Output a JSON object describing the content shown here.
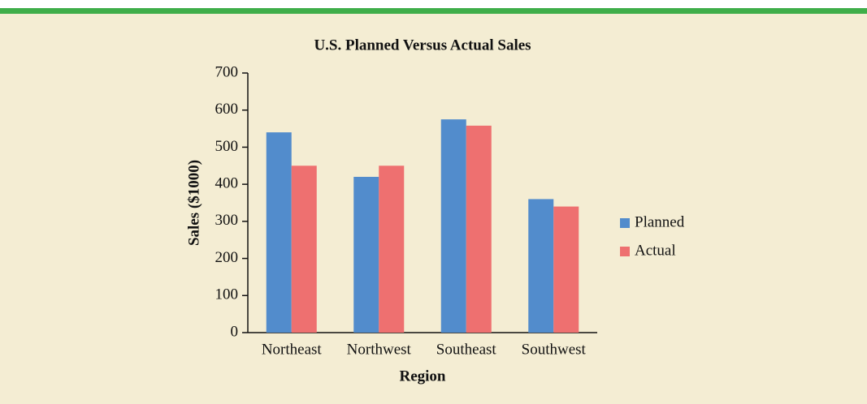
{
  "chart_data": {
    "type": "bar",
    "title": "U.S. Planned Versus Actual Sales",
    "x_label": "Region",
    "y_label": "Sales ($1000)",
    "categories": [
      "Northeast",
      "Northwest",
      "Southeast",
      "Southwest"
    ],
    "series": [
      {
        "name": "Planned",
        "color": "#528ccc",
        "values": [
          540,
          420,
          575,
          360
        ]
      },
      {
        "name": "Actual",
        "color": "#ee7070",
        "values": [
          450,
          450,
          558,
          340
        ]
      }
    ],
    "ylim": [
      0,
      700
    ],
    "yticks": [
      0,
      100,
      200,
      300,
      400,
      500,
      600,
      700
    ],
    "grid": false,
    "legend": "right"
  }
}
